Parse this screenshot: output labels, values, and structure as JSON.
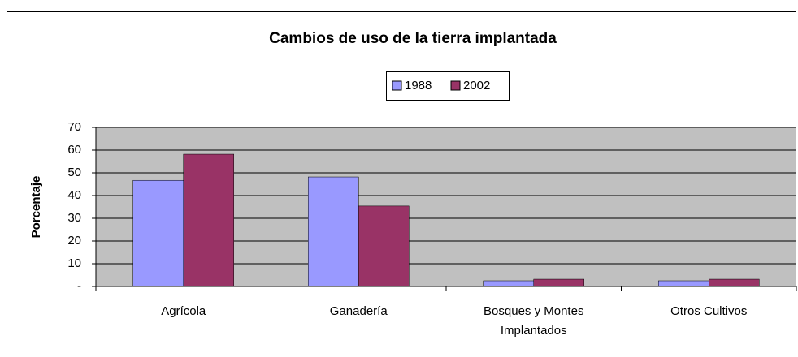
{
  "chart_data": {
    "type": "bar",
    "title": "Cambios de uso de la tierra implantada",
    "y_label": "Porcentaje",
    "categories": [
      "Agrícola",
      "Ganadería",
      "Bosques y Montes Implantados",
      "Otros Cultivos"
    ],
    "series": [
      {
        "name": "1988",
        "color": "#9999ff",
        "values": [
          46.7,
          48.2,
          2.5,
          2.5
        ]
      },
      {
        "name": "2002",
        "color": "#993366",
        "values": [
          58.2,
          35.4,
          3.2,
          3.2
        ]
      }
    ],
    "ylim": [
      0,
      70
    ],
    "yticks": [
      {
        "value": 0,
        "label": "-"
      },
      10,
      20,
      30,
      40,
      50,
      60,
      70
    ],
    "grid": true,
    "legend": "top"
  }
}
